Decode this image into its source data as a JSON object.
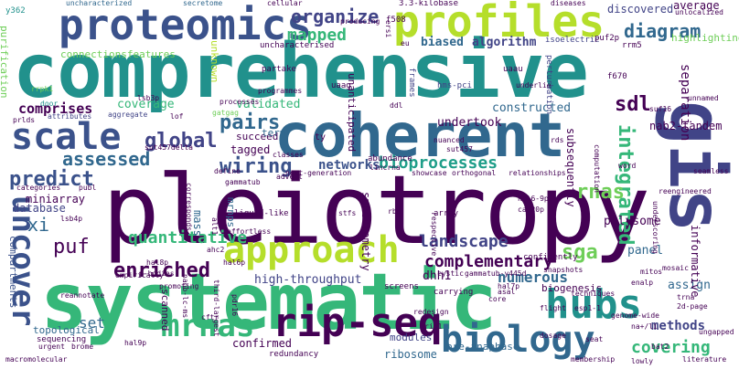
{
  "palette": {
    "dark_purple": "#440154",
    "indigo": "#3b528b",
    "slate_blue": "#414487",
    "teal_blue": "#31688e",
    "teal": "#21918c",
    "sea_green": "#1f9e89",
    "green": "#35b779",
    "light_green": "#6ece58",
    "yellow_green": "#b5de2b",
    "yellow": "#fde725",
    "dark_indigo": "#482878",
    "steel": "#26828e"
  },
  "words": {
    "comprehensive": "comprehensive",
    "pleiotropy": "pleiotropy",
    "systematic": "systematic",
    "coherent": "coherent",
    "gis": "gis",
    "proteomics": "proteomics",
    "profiles": "profiles",
    "scale": "scale",
    "approach": "approach",
    "hubs": "hubs",
    "rip_seq": "rip-seq",
    "biology": "biology",
    "mrnas_big": "mrnas",
    "uncover": "uncover",
    "diagram": "diagram",
    "organize": "organize",
    "mapped": "mapped",
    "global": "global",
    "pairs": "pairs",
    "wiring": "wiring",
    "predict": "predict",
    "assessed": "assessed",
    "enriched": "enriched",
    "quantitative": "quantitative",
    "landscape": "landscape",
    "complementary": "complementary",
    "integrated": "integrated",
    "rnas": "rnas",
    "sdl": "sdl",
    "numerous": "numerous",
    "sga": "sga",
    "covering": "covering",
    "methods": "methods",
    "bioprocesses": "bioprocesses",
    "networks": "networks",
    "connectionsfeatures": "connectionsfeatures",
    "algorithm": "algorithm",
    "biased": "biased",
    "highlighting": "highlighting",
    "separation": "separation",
    "discovered": "discovered",
    "average": "average",
    "coverage": "coverage",
    "comprises": "comprises",
    "validated": "validated",
    "constructed": "constructed",
    "undertook": "undertook",
    "nab2_tandem": "nab2-tandem",
    "subsequently": "subsequently",
    "miniarray": "miniarray",
    "database": "database",
    "xi": "xi",
    "puf": "puf",
    "set": "set",
    "high_throughput": "high-throughput",
    "dhh1": "dhh1",
    "polysome": "polysome",
    "panel": "panel",
    "assign": "assign",
    "informative": "informative",
    "mrnps": "mrnps",
    "ribosome": "ribosome",
    "confirmed": "confirmed",
    "spectrometry": "spectrometry",
    "mass": "mass",
    "compartments": "compartments",
    "scanned": "scanned",
    "modules": "modules",
    "biogenesis": "biogenesis",
    "pre_anaphase": "pre-anaphase",
    "topological": "topological",
    "tagged": "tagged",
    "succeed": "succeed",
    "term": "term",
    "uncharacterized": "uncharacterized",
    "secretome": "secretome",
    "cellular": "cellular",
    "diseases": "diseases",
    "y362": "y362",
    "purification": "purification",
    "unknown": "unknown",
    "uncharacterised": "uncharacterised",
    "isoelectric": "isoelectric",
    "puf2p": "puf2p",
    "rrm5": "rrm5",
    "f670": "f670",
    "perturbation": "perturbation",
    "underlie": "underlie",
    "hms_pci": "hms-pci",
    "frames": "frames",
    "uaau": "uaau",
    "unanticipated": "unanticipated",
    "uaag": "uaag",
    "partake": "partake",
    "producing": "producing",
    "kilobase": "3.3-kilobase",
    "f508": "f508",
    "ersi": "ersi",
    "eu": "eu",
    "rrpk1": "rrpk1",
    "door": "door",
    "prlds": "prlds",
    "attributes": "attributes",
    "aggregate": "aggregate",
    "lof": "lof",
    "lsb3p": "lsb3p",
    "gatgag": "gatgag",
    "processes": "processes",
    "programmes": "programmes",
    "ddl": "ddl",
    "nuanced": "nuanced",
    "rds": "rds",
    "unnamed": "unnamed",
    "suf16": "suf16",
    "ty": "ty",
    "sut457delta": "sut457delta",
    "classes": "classes",
    "sut457": "sut457",
    "abundance": "abundance",
    "define": "define",
    "corresponds": "corresponds",
    "next_generation": "next-generation",
    "advent": "advent",
    "lincrna": "lincrna",
    "showcase": "showcase",
    "orthogonal": "orthogonal",
    "relationships": "relationships",
    "computation": "computation",
    "word": "word",
    "seamless": "seamless",
    "reengineered": "reengineered",
    "underscoring": "underscoring",
    "categories": "categories",
    "publ": "publ",
    "lsb4p": "lsb4p",
    "liquid_like": "liquid-like",
    "stfs": "stfs",
    "array": "array",
    "rbd": "rbd",
    "hal6_9p": "hal6-9p",
    "caf20p": "caf20p",
    "mitos": "mitos",
    "mosaic": "mosaic",
    "enalp": "enalp",
    "effortless": "effortless",
    "hal8p": "hal8p",
    "hal6p": "hal6p",
    "pbodies": "p-bodies",
    "respective": "respective",
    "confidently": "confidently",
    "empirically": "empirically",
    "promoting": "promoting",
    "snapshots": "snapshots",
    "cystic": "cystic",
    "gammatub": "gammatub-y445d",
    "reannotate": "reannotate",
    "nano_lc_ms": "nano-lc-ms",
    "ahc2": "ahc2",
    "third_largest": "third-largest",
    "pdr16": "pdr16",
    "hal7p": "hal7p",
    "screens": "screens",
    "carrying": "carrying",
    "techniques": "techniques",
    "esp1_1": "esp1-1",
    "flight": "flight",
    "core": "core",
    "asal": "asal",
    "trna": "trna",
    "page_2d": "2d-page",
    "redesign": "redesign",
    "genome_wide": "genome-wide",
    "cftr": "cftr",
    "sequencing": "sequencing",
    "urgent": "urgent",
    "brome": "brome",
    "macromolecular": "macromolecular",
    "hal9p": "hal9p",
    "redundancy": "redundancy",
    "rio1": "rio1",
    "dosage": "dosage",
    "seat": "seat",
    "na_li": "na+/li",
    "ungapped": "ungapped",
    "membership": "membership",
    "lowly": "lowly",
    "literature": "literature",
    "bat2": "bat2",
    "unlocalized": "unlocalized",
    "alt1": "alt1",
    "gammatub_short": "gammatub"
  }
}
